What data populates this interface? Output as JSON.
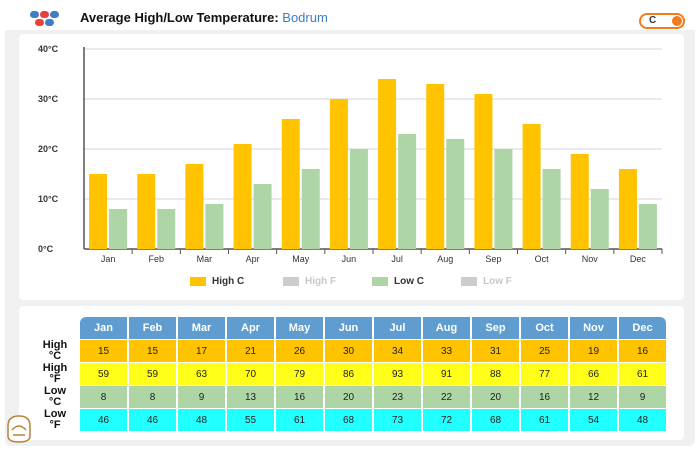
{
  "header": {
    "title": "Average High/Low Temperature:",
    "city": "Bodrum",
    "unit_toggle_label": "C"
  },
  "colors": {
    "high_c": "#ffc300",
    "high_f": "#cccccc",
    "low_c": "#add5a6",
    "low_f": "#cccccc",
    "table_header": "#5f9cd0",
    "row_high_f": "#ffff19",
    "row_low_f": "#22ffff",
    "toggle": "#f27b1c"
  },
  "legend": [
    {
      "label": "High C",
      "color": "#ffc300",
      "active": true
    },
    {
      "label": "High F",
      "color": "#cccccc",
      "active": false
    },
    {
      "label": "Low C",
      "color": "#add5a6",
      "active": true
    },
    {
      "label": "Low F",
      "color": "#cccccc",
      "active": false
    }
  ],
  "chart_data": {
    "type": "bar",
    "categories": [
      "Jan",
      "Feb",
      "Mar",
      "Apr",
      "May",
      "Jun",
      "Jul",
      "Aug",
      "Sep",
      "Oct",
      "Nov",
      "Dec"
    ],
    "series": [
      {
        "name": "High C",
        "values": [
          15,
          15,
          17,
          21,
          26,
          30,
          34,
          33,
          31,
          25,
          19,
          16
        ]
      },
      {
        "name": "Low C",
        "values": [
          8,
          8,
          9,
          13,
          16,
          20,
          23,
          22,
          20,
          16,
          12,
          9
        ]
      }
    ],
    "ylim": [
      0,
      40
    ],
    "yticks": [
      0,
      10,
      20,
      30,
      40
    ],
    "ytick_labels": [
      "0°C",
      "10°C",
      "20°C",
      "30°C",
      "40°C"
    ],
    "grid": true,
    "legend_position": "bottom"
  },
  "table": {
    "months": [
      "Jan",
      "Feb",
      "Mar",
      "Apr",
      "May",
      "Jun",
      "Jul",
      "Aug",
      "Sep",
      "Oct",
      "Nov",
      "Dec"
    ],
    "rows": [
      {
        "label": "High",
        "unit": "°C",
        "values": [
          "15",
          "15",
          "17",
          "21",
          "26",
          "30",
          "34",
          "33",
          "31",
          "25",
          "19",
          "16"
        ]
      },
      {
        "label": "High",
        "unit": "°F",
        "values": [
          "59",
          "59",
          "63",
          "70",
          "79",
          "86",
          "93",
          "91",
          "88",
          "77",
          "66",
          "61"
        ]
      },
      {
        "label": "Low",
        "unit": "°C",
        "values": [
          "8",
          "8",
          "9",
          "13",
          "16",
          "20",
          "23",
          "22",
          "20",
          "16",
          "12",
          "9"
        ]
      },
      {
        "label": "Low",
        "unit": "°F",
        "values": [
          "46",
          "46",
          "48",
          "55",
          "61",
          "68",
          "73",
          "72",
          "68",
          "61",
          "54",
          "48"
        ]
      }
    ]
  }
}
